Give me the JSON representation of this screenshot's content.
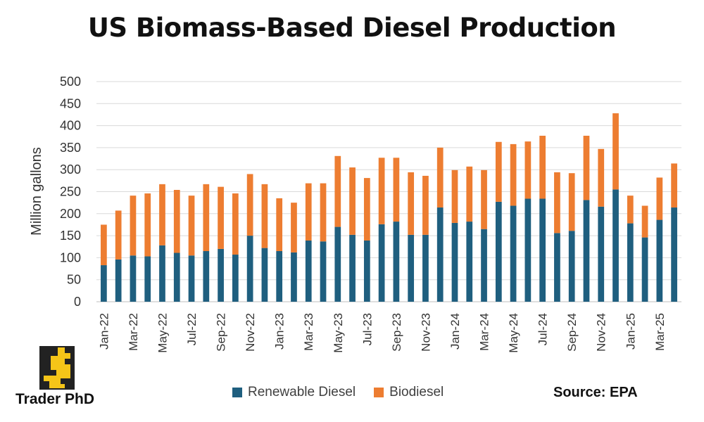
{
  "chart_data": {
    "type": "bar",
    "stacked": true,
    "title": "US Biomass-Based Diesel Production",
    "ylabel": "Million gallons",
    "xlabel": "",
    "ylim": [
      0,
      500
    ],
    "yticks": [
      0,
      50,
      100,
      150,
      200,
      250,
      300,
      350,
      400,
      450,
      500
    ],
    "grid": true,
    "legend_position": "bottom",
    "categories": [
      "Jan-22",
      "Feb-22",
      "Mar-22",
      "Apr-22",
      "May-22",
      "Jun-22",
      "Jul-22",
      "Aug-22",
      "Sep-22",
      "Oct-22",
      "Nov-22",
      "Dec-22",
      "Jan-23",
      "Feb-23",
      "Mar-23",
      "Apr-23",
      "May-23",
      "Jun-23",
      "Jul-23",
      "Aug-23",
      "Sep-23",
      "Oct-23",
      "Nov-23",
      "Dec-23",
      "Jan-24",
      "Feb-24",
      "Mar-24",
      "Apr-24",
      "May-24",
      "Jun-24",
      "Jul-24",
      "Aug-24",
      "Sep-24",
      "Oct-24",
      "Nov-24",
      "Dec-24",
      "Jan-25",
      "Feb-25",
      "Mar-25",
      "Apr-25"
    ],
    "tick_labels": [
      "Jan-22",
      "",
      "Mar-22",
      "",
      "May-22",
      "",
      "Jul-22",
      "",
      "Sep-22",
      "",
      "Nov-22",
      "",
      "Jan-23",
      "",
      "Mar-23",
      "",
      "May-23",
      "",
      "Jul-23",
      "",
      "Sep-23",
      "",
      "Nov-23",
      "",
      "Jan-24",
      "",
      "Mar-24",
      "",
      "May-24",
      "",
      "Jul-24",
      "",
      "Sep-24",
      "",
      "Nov-24",
      "",
      "Jan-25",
      "",
      "Mar-25",
      ""
    ],
    "series": [
      {
        "name": "Renewable Diesel",
        "color": "#1f5f7f",
        "values": [
          83,
          96,
          105,
          103,
          128,
          111,
          105,
          115,
          120,
          107,
          150,
          122,
          115,
          112,
          139,
          137,
          170,
          152,
          139,
          176,
          182,
          152,
          152,
          214,
          179,
          182,
          165,
          227,
          218,
          234,
          234,
          156,
          161,
          231,
          216,
          255,
          178,
          146,
          186,
          214
        ]
      },
      {
        "name": "Biodiesel",
        "color": "#ed7d31",
        "values": [
          92,
          111,
          136,
          143,
          139,
          143,
          136,
          152,
          141,
          139,
          140,
          145,
          120,
          113,
          130,
          132,
          161,
          153,
          142,
          151,
          145,
          142,
          134,
          136,
          120,
          125,
          134,
          136,
          140,
          130,
          143,
          138,
          131,
          146,
          131,
          173,
          63,
          72,
          96,
          100
        ]
      }
    ]
  },
  "source": "Source: EPA",
  "logo": {
    "text": "Trader PhD",
    "icon": "dollar-s-logo-icon",
    "box_color": "#222222",
    "mark_color": "#f5c518"
  }
}
